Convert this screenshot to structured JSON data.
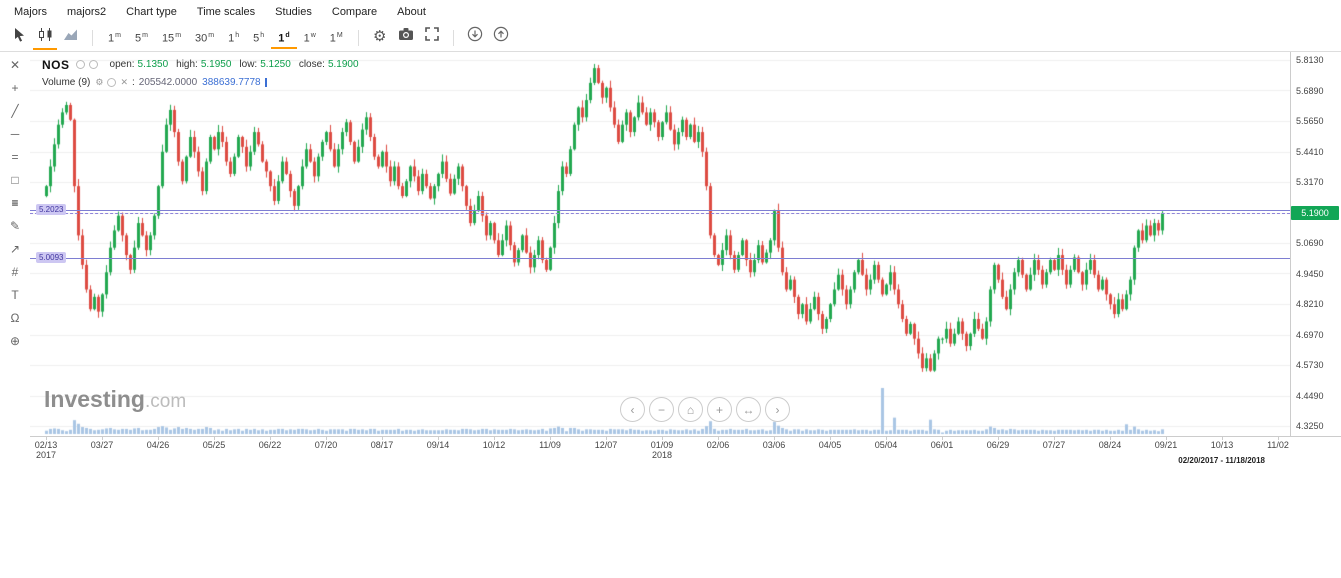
{
  "menubar": {
    "items": [
      "Majors",
      "majors2",
      "Chart type",
      "Time scales",
      "Studies",
      "Compare",
      "About"
    ]
  },
  "toolbar": {
    "intervals": [
      {
        "num": "1",
        "unit": "m"
      },
      {
        "num": "5",
        "unit": "m"
      },
      {
        "num": "15",
        "unit": "m"
      },
      {
        "num": "30",
        "unit": "m"
      },
      {
        "num": "1",
        "unit": "h"
      },
      {
        "num": "5",
        "unit": "h"
      },
      {
        "num": "1",
        "unit": "d",
        "active": true
      },
      {
        "num": "1",
        "unit": "w"
      },
      {
        "num": "1",
        "unit": "M"
      }
    ]
  },
  "drawing_toolbar": {
    "tools": [
      {
        "name": "close",
        "glyph": "✕"
      },
      {
        "name": "crosshair-tool",
        "glyph": "+"
      },
      {
        "name": "trendline-tool",
        "glyph": "╱"
      },
      {
        "name": "horizontal-line-tool",
        "glyph": "─"
      },
      {
        "name": "channel-tool",
        "glyph": "="
      },
      {
        "name": "rectangle-tool",
        "glyph": "□"
      },
      {
        "name": "lines-menu-tool",
        "glyph": "≡",
        "active": true
      },
      {
        "name": "pencil-tool",
        "glyph": "✎"
      },
      {
        "name": "arrow-tool",
        "glyph": "↗"
      },
      {
        "name": "fibonacci-tool",
        "glyph": "#"
      },
      {
        "name": "text-tool",
        "glyph": "T"
      },
      {
        "name": "magnet-tool",
        "glyph": "Ω"
      },
      {
        "name": "zoom-tool",
        "glyph": "⊕"
      }
    ]
  },
  "legend": {
    "symbol": "NOS",
    "open_label": "open:",
    "open_value": "5.1350",
    "high_label": "high:",
    "high_value": "5.1950",
    "low_label": "low:",
    "low_value": "5.1250",
    "close_label": "close:",
    "close_value": "5.1900",
    "study_label": "Volume (9)",
    "study_sep": ":",
    "study_value1": "205542.0000",
    "study_value2": "388639.7778"
  },
  "watermark": {
    "bold": "Investing",
    "light": ".com"
  },
  "nav_controls": [
    {
      "name": "scroll-left",
      "glyph": "‹"
    },
    {
      "name": "zoom-out",
      "glyph": "−"
    },
    {
      "name": "reset-view",
      "glyph": "⌂"
    },
    {
      "name": "zoom-in",
      "glyph": "+"
    },
    {
      "name": "pan",
      "glyph": "↔"
    },
    {
      "name": "scroll-right",
      "glyph": "›"
    }
  ],
  "colors": {
    "up": "#23a850",
    "down": "#dd4b42",
    "volume": "#aac6e4",
    "grid": "#efefef",
    "accent": "#ff9900",
    "badge_green": "#12a656",
    "hline": "#7e7ed2",
    "hline_badge_bg": "#cdc7f2",
    "hline_badge_text": "#4136a0"
  },
  "chart_data": {
    "type": "candlestick",
    "symbol": "NOS",
    "ohlc": {
      "open": 5.135,
      "high": 5.195,
      "low": 5.125,
      "close": 5.19
    },
    "study": {
      "name": "Volume (9)",
      "values": [
        205542.0,
        388639.7778
      ]
    },
    "range_label": "02/20/2017 - 11/18/2018",
    "y_axis": {
      "max": 5.813,
      "min": 4.325,
      "ticks": [
        {
          "label": "5.8130",
          "value": 5.813
        },
        {
          "label": "5.6890",
          "value": 5.689
        },
        {
          "label": "5.5650",
          "value": 5.565
        },
        {
          "label": "5.4410",
          "value": 5.441
        },
        {
          "label": "5.3170",
          "value": 5.317
        },
        {
          "label": "5.0690",
          "value": 5.069
        },
        {
          "label": "4.9450",
          "value": 4.945
        },
        {
          "label": "4.8210",
          "value": 4.821
        },
        {
          "label": "4.6970",
          "value": 4.697
        },
        {
          "label": "4.5730",
          "value": 4.573
        },
        {
          "label": "4.4490",
          "value": 4.449
        },
        {
          "label": "4.3250",
          "value": 4.325
        }
      ],
      "grid_prices": [
        5.813,
        5.689,
        5.565,
        5.441,
        5.317,
        5.193,
        5.069,
        4.945,
        4.821,
        4.697,
        4.573,
        4.449,
        4.325
      ]
    },
    "x_axis": {
      "ticks": [
        {
          "label": "02/13",
          "year": "2017"
        },
        {
          "label": "03/27"
        },
        {
          "label": "04/26"
        },
        {
          "label": "05/25"
        },
        {
          "label": "06/22"
        },
        {
          "label": "07/20"
        },
        {
          "label": "08/17"
        },
        {
          "label": "09/14"
        },
        {
          "label": "10/12"
        },
        {
          "label": "11/09"
        },
        {
          "label": "12/07"
        },
        {
          "label": "01/09",
          "year": "2018"
        },
        {
          "label": "02/06"
        },
        {
          "label": "03/06"
        },
        {
          "label": "04/05"
        },
        {
          "label": "05/04"
        },
        {
          "label": "06/01"
        },
        {
          "label": "06/29"
        },
        {
          "label": "07/27"
        },
        {
          "label": "08/24"
        },
        {
          "label": "09/21"
        },
        {
          "label": "10/13"
        },
        {
          "label": "11/02"
        }
      ]
    },
    "horizontal_lines": [
      {
        "price": 5.2023,
        "label": "5.2023"
      },
      {
        "price": 5.0093,
        "label": "5.0093"
      }
    ],
    "last_price": {
      "value": 5.19,
      "label": "5.1900"
    },
    "first_open": 5.26,
    "closes": [
      5.3,
      5.38,
      5.47,
      5.55,
      5.6,
      5.63,
      5.57,
      5.3,
      5.1,
      4.98,
      4.88,
      4.8,
      4.85,
      4.79,
      4.86,
      4.95,
      5.05,
      5.12,
      5.18,
      5.1,
      5.02,
      4.96,
      5.05,
      5.15,
      5.1,
      5.04,
      5.1,
      5.18,
      5.3,
      5.44,
      5.55,
      5.61,
      5.52,
      5.4,
      5.32,
      5.42,
      5.5,
      5.44,
      5.36,
      5.28,
      5.4,
      5.5,
      5.45,
      5.52,
      5.48,
      5.4,
      5.35,
      5.42,
      5.5,
      5.46,
      5.38,
      5.44,
      5.52,
      5.47,
      5.4,
      5.36,
      5.3,
      5.24,
      5.32,
      5.4,
      5.35,
      5.28,
      5.22,
      5.3,
      5.38,
      5.45,
      5.4,
      5.34,
      5.42,
      5.48,
      5.52,
      5.45,
      5.38,
      5.45,
      5.52,
      5.56,
      5.48,
      5.4,
      5.46,
      5.53,
      5.58,
      5.5,
      5.42,
      5.38,
      5.44,
      5.38,
      5.32,
      5.38,
      5.3,
      5.26,
      5.32,
      5.38,
      5.34,
      5.28,
      5.35,
      5.3,
      5.25,
      5.3,
      5.35,
      5.4,
      5.33,
      5.27,
      5.33,
      5.38,
      5.3,
      5.22,
      5.15,
      5.2,
      5.26,
      5.18,
      5.1,
      5.15,
      5.08,
      5.02,
      5.08,
      5.14,
      5.06,
      4.99,
      5.04,
      5.1,
      5.03,
      4.97,
      5.02,
      5.08,
      5.0,
      4.96,
      5.05,
      5.15,
      5.28,
      5.38,
      5.35,
      5.45,
      5.55,
      5.62,
      5.58,
      5.65,
      5.72,
      5.78,
      5.72,
      5.66,
      5.7,
      5.62,
      5.55,
      5.48,
      5.55,
      5.6,
      5.52,
      5.58,
      5.64,
      5.6,
      5.55,
      5.6,
      5.56,
      5.5,
      5.56,
      5.6,
      5.53,
      5.47,
      5.52,
      5.57,
      5.5,
      5.55,
      5.48,
      5.52,
      5.44,
      5.3,
      5.1,
      5.02,
      4.98,
      5.04,
      5.1,
      5.02,
      4.96,
      5.02,
      5.08,
      5.0,
      4.95,
      5.0,
      5.06,
      4.99,
      5.03,
      5.08,
      5.2,
      5.05,
      4.95,
      4.88,
      4.92,
      4.85,
      4.78,
      4.82,
      4.75,
      4.8,
      4.85,
      4.78,
      4.72,
      4.76,
      4.82,
      4.88,
      4.94,
      4.88,
      4.82,
      4.88,
      4.95,
      5.0,
      4.94,
      4.88,
      4.92,
      4.98,
      4.92,
      4.86,
      4.9,
      4.95,
      4.88,
      4.82,
      4.76,
      4.7,
      4.74,
      4.68,
      4.62,
      4.56,
      4.6,
      4.55,
      4.62,
      4.68,
      4.68,
      4.72,
      4.66,
      4.7,
      4.75,
      4.7,
      4.65,
      4.7,
      4.76,
      4.72,
      4.68,
      4.75,
      4.88,
      4.98,
      4.92,
      4.85,
      4.8,
      4.88,
      4.95,
      5.0,
      4.94,
      4.88,
      4.94,
      5.0,
      4.96,
      4.9,
      4.95,
      5.0,
      4.96,
      5.02,
      4.96,
      4.9,
      4.96,
      5.01,
      4.95,
      4.9,
      4.96,
      5.0,
      4.94,
      4.88,
      4.92,
      4.86,
      4.82,
      4.78,
      4.84,
      4.8,
      4.86,
      4.92,
      5.05,
      5.12,
      5.08,
      5.14,
      5.1,
      5.15,
      5.12,
      5.19
    ],
    "volume_spikes": [
      {
        "i": 8,
        "v": 200000
      },
      {
        "i": 166,
        "v": 250000
      },
      {
        "i": 182,
        "v": 240000
      },
      {
        "i": 209,
        "v": 900000
      },
      {
        "i": 212,
        "v": 320000
      },
      {
        "i": 221,
        "v": 280000
      },
      {
        "i": 270,
        "v": 190000
      }
    ]
  }
}
